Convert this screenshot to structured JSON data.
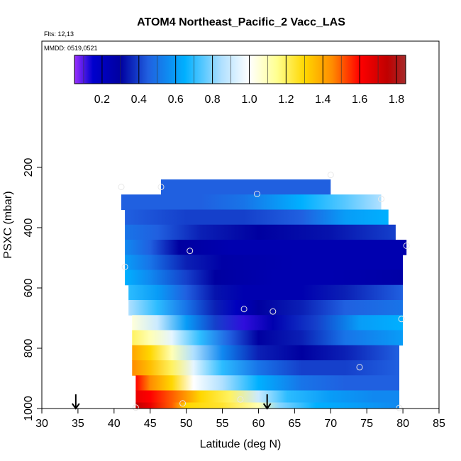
{
  "chart_data": {
    "type": "heatmap",
    "title": "ATOM4 Northeast_Pacific_2 Vacc_LAS",
    "flights_label": "Flts: 12,13",
    "mmdd_label": "MMDD: 0519,0521",
    "xlabel": "Latitude (deg N)",
    "ylabel": "PSXC (mbar)",
    "xlim": [
      30,
      85
    ],
    "ylim": [
      1000,
      0
    ],
    "x_ticks": [
      30,
      35,
      40,
      45,
      50,
      55,
      60,
      65,
      70,
      75,
      80,
      85
    ],
    "y_ticks": [
      200,
      400,
      600,
      800,
      1000
    ],
    "colorbar": {
      "range": [
        0.05,
        1.85
      ],
      "ticks": [
        0.2,
        0.4,
        0.6,
        0.8,
        1.0,
        1.2,
        1.4,
        1.6,
        1.8
      ],
      "tick_labels": [
        "0.2",
        "0.4",
        "0.6",
        "0.8",
        "1.0",
        "1.2",
        "1.4",
        "1.6",
        "1.8"
      ],
      "color_stops": [
        {
          "v": 0.05,
          "c": "#9b30ff"
        },
        {
          "v": 0.15,
          "c": "#0000cd"
        },
        {
          "v": 0.3,
          "c": "#0000a0"
        },
        {
          "v": 0.45,
          "c": "#2060e0"
        },
        {
          "v": 0.65,
          "c": "#00b0ff"
        },
        {
          "v": 0.85,
          "c": "#b0e0ff"
        },
        {
          "v": 1.0,
          "c": "#ffffff"
        },
        {
          "v": 1.15,
          "c": "#ffff90"
        },
        {
          "v": 1.3,
          "c": "#ffd700"
        },
        {
          "v": 1.45,
          "c": "#ff8c00"
        },
        {
          "v": 1.6,
          "c": "#ff0000"
        },
        {
          "v": 1.75,
          "c": "#c00000"
        },
        {
          "v": 1.85,
          "c": "#a52a2a"
        }
      ]
    },
    "layers": [
      {
        "p_top": 240,
        "p_bot": 290,
        "lat_start": 46.5,
        "lat_end": 70,
        "v": [
          [
            46.5,
            0.45
          ],
          [
            55,
            0.45
          ],
          [
            62,
            0.45
          ],
          [
            70,
            0.45
          ]
        ]
      },
      {
        "p_top": 290,
        "p_bot": 340,
        "lat_start": 41,
        "lat_end": 77,
        "v": [
          [
            41,
            0.45
          ],
          [
            52,
            0.45
          ],
          [
            58,
            0.5
          ],
          [
            66,
            0.65
          ],
          [
            72,
            0.75
          ],
          [
            77,
            0.85
          ]
        ]
      },
      {
        "p_top": 340,
        "p_bot": 390,
        "lat_start": 41.5,
        "lat_end": 78,
        "v": [
          [
            41.5,
            0.45
          ],
          [
            50,
            0.4
          ],
          [
            58,
            0.4
          ],
          [
            66,
            0.45
          ],
          [
            72,
            0.6
          ],
          [
            78,
            0.65
          ]
        ]
      },
      {
        "p_top": 390,
        "p_bot": 440,
        "lat_start": 41.5,
        "lat_end": 79,
        "v": [
          [
            41.5,
            0.5
          ],
          [
            46,
            0.45
          ],
          [
            52,
            0.35
          ],
          [
            60,
            0.3
          ],
          [
            70,
            0.33
          ],
          [
            79,
            0.4
          ]
        ]
      },
      {
        "p_top": 440,
        "p_bot": 490,
        "lat_start": 41.5,
        "lat_end": 80.5,
        "v": [
          [
            41.5,
            0.55
          ],
          [
            45,
            0.45
          ],
          [
            49,
            0.3
          ],
          [
            56,
            0.25
          ],
          [
            66,
            0.25
          ],
          [
            80.5,
            0.25
          ]
        ]
      },
      {
        "p_top": 490,
        "p_bot": 540,
        "lat_start": 41.5,
        "lat_end": 80,
        "v": [
          [
            41.5,
            0.6
          ],
          [
            45,
            0.5
          ],
          [
            50,
            0.35
          ],
          [
            55,
            0.28
          ],
          [
            65,
            0.25
          ],
          [
            80,
            0.25
          ]
        ]
      },
      {
        "p_top": 540,
        "p_bot": 590,
        "lat_start": 41.5,
        "lat_end": 80,
        "v": [
          [
            41.5,
            0.65
          ],
          [
            45,
            0.55
          ],
          [
            50,
            0.4
          ],
          [
            54,
            0.3
          ],
          [
            62,
            0.25
          ],
          [
            70,
            0.25
          ],
          [
            80,
            0.28
          ]
        ]
      },
      {
        "p_top": 590,
        "p_bot": 640,
        "lat_start": 42,
        "lat_end": 80,
        "v": [
          [
            42,
            0.7
          ],
          [
            46,
            0.6
          ],
          [
            50,
            0.45
          ],
          [
            54,
            0.33
          ],
          [
            58,
            0.25
          ],
          [
            66,
            0.25
          ],
          [
            72,
            0.35
          ],
          [
            80,
            0.45
          ]
        ]
      },
      {
        "p_top": 640,
        "p_bot": 690,
        "lat_start": 42,
        "lat_end": 80,
        "v": [
          [
            42,
            0.85
          ],
          [
            46,
            0.7
          ],
          [
            50,
            0.5
          ],
          [
            54,
            0.35
          ],
          [
            57,
            0.2
          ],
          [
            60,
            0.3
          ],
          [
            66,
            0.35
          ],
          [
            72,
            0.45
          ],
          [
            80,
            0.5
          ]
        ]
      },
      {
        "p_top": 690,
        "p_bot": 740,
        "lat_start": 42.5,
        "lat_end": 80,
        "v": [
          [
            42.5,
            1.05
          ],
          [
            46,
            0.9
          ],
          [
            50,
            0.6
          ],
          [
            54,
            0.4
          ],
          [
            58,
            0.12
          ],
          [
            62,
            0.25
          ],
          [
            68,
            0.4
          ],
          [
            74,
            0.6
          ],
          [
            80,
            0.65
          ]
        ]
      },
      {
        "p_top": 740,
        "p_bot": 790,
        "lat_start": 42.5,
        "lat_end": 80,
        "v": [
          [
            42.5,
            1.2
          ],
          [
            45,
            1.1
          ],
          [
            48,
            0.95
          ],
          [
            52,
            0.7
          ],
          [
            56,
            0.45
          ],
          [
            60,
            0.3
          ],
          [
            66,
            0.35
          ],
          [
            72,
            0.5
          ],
          [
            80,
            0.6
          ]
        ]
      },
      {
        "p_top": 790,
        "p_bot": 840,
        "lat_start": 42.5,
        "lat_end": 79.5,
        "v": [
          [
            42.5,
            1.4
          ],
          [
            45,
            1.3
          ],
          [
            48,
            1.1
          ],
          [
            51,
            0.85
          ],
          [
            55,
            0.55
          ],
          [
            60,
            0.35
          ],
          [
            66,
            0.3
          ],
          [
            72,
            0.35
          ],
          [
            79.5,
            0.45
          ]
        ]
      },
      {
        "p_top": 840,
        "p_bot": 890,
        "lat_start": 42.5,
        "lat_end": 79.5,
        "v": [
          [
            42.5,
            1.45
          ],
          [
            45,
            1.35
          ],
          [
            48,
            1.2
          ],
          [
            51,
            0.95
          ],
          [
            55,
            0.7
          ],
          [
            60,
            0.5
          ],
          [
            66,
            0.4
          ],
          [
            72,
            0.4
          ],
          [
            79.5,
            0.45
          ]
        ]
      },
      {
        "p_top": 890,
        "p_bot": 940,
        "lat_start": 43,
        "lat_end": 79.5,
        "v": [
          [
            43,
            1.6
          ],
          [
            45,
            1.45
          ],
          [
            48,
            1.3
          ],
          [
            51,
            1.0
          ],
          [
            55,
            0.85
          ],
          [
            60,
            0.65
          ],
          [
            66,
            0.5
          ],
          [
            72,
            0.45
          ],
          [
            79.5,
            0.45
          ]
        ]
      },
      {
        "p_top": 940,
        "p_bot": 980,
        "lat_start": 43,
        "lat_end": 79.5,
        "v": [
          [
            43,
            1.65
          ],
          [
            45,
            1.6
          ],
          [
            48,
            1.5
          ],
          [
            52,
            1.3
          ],
          [
            56,
            1.2
          ],
          [
            60,
            0.9
          ],
          [
            64,
            0.7
          ],
          [
            70,
            0.6
          ],
          [
            76,
            0.55
          ],
          [
            79.5,
            0.55
          ]
        ]
      },
      {
        "p_top": 980,
        "p_bot": 1000,
        "lat_start": 43,
        "lat_end": 79.5,
        "v": [
          [
            43,
            1.75
          ],
          [
            45,
            1.65
          ],
          [
            48,
            1.5
          ],
          [
            50,
            1.3
          ],
          [
            55,
            1.25
          ],
          [
            60,
            1.1
          ],
          [
            63,
            0.8
          ],
          [
            68,
            0.65
          ],
          [
            74,
            0.6
          ],
          [
            79.5,
            0.55
          ]
        ]
      }
    ],
    "obs_points": [
      {
        "lat": 46.5,
        "p": 265
      },
      {
        "lat": 70,
        "p": 225
      },
      {
        "lat": 59.8,
        "p": 288
      },
      {
        "lat": 41,
        "p": 265
      },
      {
        "lat": 77,
        "p": 305
      },
      {
        "lat": 50.5,
        "p": 477
      },
      {
        "lat": 80.5,
        "p": 460
      },
      {
        "lat": 41.5,
        "p": 530
      },
      {
        "lat": 58,
        "p": 670
      },
      {
        "lat": 62,
        "p": 678
      },
      {
        "lat": 79.8,
        "p": 703
      },
      {
        "lat": 74,
        "p": 863
      },
      {
        "lat": 57.5,
        "p": 970
      },
      {
        "lat": 49.5,
        "p": 983
      },
      {
        "lat": 43,
        "p": 997
      },
      {
        "lat": 79.5,
        "p": 998
      }
    ],
    "flight_markers": [
      34.7,
      61.2
    ]
  }
}
